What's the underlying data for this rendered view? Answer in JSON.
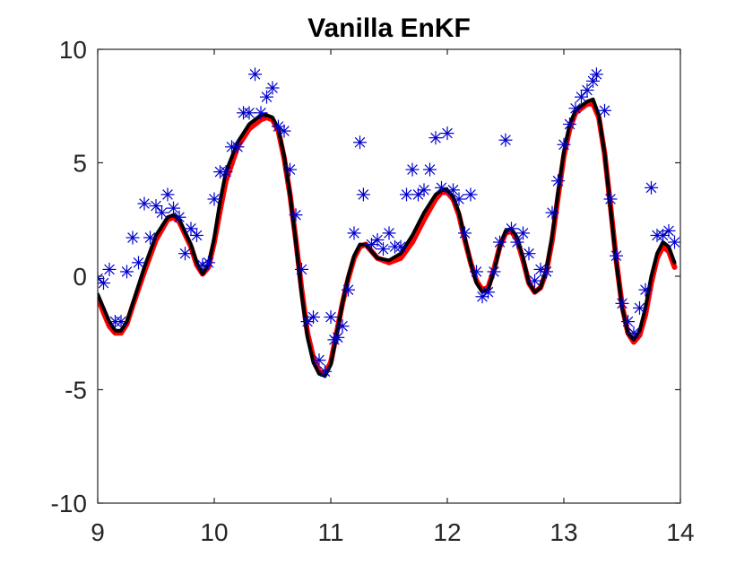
{
  "chart_data": {
    "type": "line",
    "title": "Vanilla EnKF",
    "xlabel": "",
    "ylabel": "",
    "xlim": [
      9,
      14
    ],
    "ylim": [
      -10,
      10
    ],
    "xticks": [
      9,
      10,
      11,
      12,
      13,
      14
    ],
    "yticks": [
      10,
      5,
      0,
      -5,
      -10
    ],
    "xtick_labels": [
      "9",
      "10",
      "11",
      "12",
      "13",
      "14"
    ],
    "ytick_labels": [
      "10",
      "5",
      "0",
      "-5",
      "-10"
    ],
    "grid": false,
    "legend": "none",
    "series": [
      {
        "color": "#ff0000",
        "style": "line",
        "points": [
          [
            9.0,
            -0.9
          ],
          [
            9.05,
            -1.6
          ],
          [
            9.1,
            -2.2
          ],
          [
            9.15,
            -2.5
          ],
          [
            9.2,
            -2.5
          ],
          [
            9.25,
            -2.1
          ],
          [
            9.3,
            -1.3
          ],
          [
            9.4,
            0.2
          ],
          [
            9.5,
            1.6
          ],
          [
            9.6,
            2.5
          ],
          [
            9.65,
            2.6
          ],
          [
            9.7,
            2.4
          ],
          [
            9.8,
            1.3
          ],
          [
            9.85,
            0.5
          ],
          [
            9.9,
            0.1
          ],
          [
            9.95,
            0.4
          ],
          [
            10.0,
            1.5
          ],
          [
            10.05,
            2.9
          ],
          [
            10.1,
            4.2
          ],
          [
            10.2,
            5.7
          ],
          [
            10.3,
            6.5
          ],
          [
            10.4,
            6.9
          ],
          [
            10.45,
            7.0
          ],
          [
            10.5,
            6.9
          ],
          [
            10.55,
            6.4
          ],
          [
            10.6,
            5.2
          ],
          [
            10.65,
            3.6
          ],
          [
            10.7,
            1.6
          ],
          [
            10.75,
            -0.6
          ],
          [
            10.8,
            -2.5
          ],
          [
            10.85,
            -3.6
          ],
          [
            10.9,
            -4.2
          ],
          [
            10.95,
            -4.3
          ],
          [
            11.0,
            -3.8
          ],
          [
            11.05,
            -2.5
          ],
          [
            11.1,
            -1.2
          ],
          [
            11.15,
            -0.1
          ],
          [
            11.2,
            0.8
          ],
          [
            11.25,
            1.3
          ],
          [
            11.3,
            1.4
          ],
          [
            11.35,
            1.1
          ],
          [
            11.4,
            0.8
          ],
          [
            11.5,
            0.6
          ],
          [
            11.6,
            0.8
          ],
          [
            11.7,
            1.5
          ],
          [
            11.8,
            2.5
          ],
          [
            11.9,
            3.4
          ],
          [
            11.95,
            3.7
          ],
          [
            12.0,
            3.7
          ],
          [
            12.05,
            3.4
          ],
          [
            12.1,
            2.7
          ],
          [
            12.15,
            1.6
          ],
          [
            12.2,
            0.6
          ],
          [
            12.25,
            -0.2
          ],
          [
            12.3,
            -0.6
          ],
          [
            12.35,
            -0.5
          ],
          [
            12.4,
            0.3
          ],
          [
            12.45,
            1.3
          ],
          [
            12.5,
            1.9
          ],
          [
            12.55,
            2.0
          ],
          [
            12.6,
            1.6
          ],
          [
            12.65,
            0.7
          ],
          [
            12.7,
            -0.3
          ],
          [
            12.75,
            -0.7
          ],
          [
            12.8,
            -0.5
          ],
          [
            12.85,
            0.2
          ],
          [
            12.9,
            1.6
          ],
          [
            12.95,
            3.5
          ],
          [
            13.0,
            5.3
          ],
          [
            13.05,
            6.5
          ],
          [
            13.1,
            7.2
          ],
          [
            13.2,
            7.6
          ],
          [
            13.25,
            7.6
          ],
          [
            13.3,
            7.0
          ],
          [
            13.35,
            5.4
          ],
          [
            13.4,
            3.1
          ],
          [
            13.45,
            0.7
          ],
          [
            13.5,
            -1.3
          ],
          [
            13.55,
            -2.5
          ],
          [
            13.6,
            -2.9
          ],
          [
            13.65,
            -2.6
          ],
          [
            13.7,
            -1.7
          ],
          [
            13.75,
            -0.3
          ],
          [
            13.8,
            0.8
          ],
          [
            13.85,
            1.3
          ],
          [
            13.9,
            1.1
          ],
          [
            13.95,
            0.4
          ]
        ]
      },
      {
        "color": "#000000",
        "style": "line",
        "points": [
          [
            9.0,
            -0.8
          ],
          [
            9.05,
            -1.4
          ],
          [
            9.1,
            -2.0
          ],
          [
            9.15,
            -2.4
          ],
          [
            9.2,
            -2.4
          ],
          [
            9.25,
            -2.0
          ],
          [
            9.3,
            -1.2
          ],
          [
            9.4,
            0.4
          ],
          [
            9.5,
            1.8
          ],
          [
            9.6,
            2.6
          ],
          [
            9.65,
            2.7
          ],
          [
            9.7,
            2.5
          ],
          [
            9.8,
            1.4
          ],
          [
            9.85,
            0.6
          ],
          [
            9.9,
            0.1
          ],
          [
            9.95,
            0.5
          ],
          [
            10.0,
            1.7
          ],
          [
            10.05,
            3.3
          ],
          [
            10.1,
            4.6
          ],
          [
            10.2,
            5.9
          ],
          [
            10.3,
            6.7
          ],
          [
            10.4,
            7.1
          ],
          [
            10.45,
            7.1
          ],
          [
            10.5,
            7.0
          ],
          [
            10.55,
            6.5
          ],
          [
            10.6,
            5.3
          ],
          [
            10.65,
            3.6
          ],
          [
            10.7,
            1.5
          ],
          [
            10.75,
            -0.8
          ],
          [
            10.8,
            -2.7
          ],
          [
            10.85,
            -3.8
          ],
          [
            10.9,
            -4.3
          ],
          [
            10.95,
            -4.4
          ],
          [
            11.0,
            -3.9
          ],
          [
            11.05,
            -2.6
          ],
          [
            11.1,
            -1.2
          ],
          [
            11.15,
            0.0
          ],
          [
            11.2,
            0.9
          ],
          [
            11.25,
            1.4
          ],
          [
            11.3,
            1.4
          ],
          [
            11.35,
            1.1
          ],
          [
            11.4,
            0.8
          ],
          [
            11.5,
            0.7
          ],
          [
            11.6,
            1.0
          ],
          [
            11.7,
            1.8
          ],
          [
            11.8,
            2.8
          ],
          [
            11.9,
            3.6
          ],
          [
            11.95,
            3.8
          ],
          [
            12.0,
            3.8
          ],
          [
            12.05,
            3.5
          ],
          [
            12.1,
            2.8
          ],
          [
            12.15,
            1.7
          ],
          [
            12.2,
            0.6
          ],
          [
            12.25,
            -0.3
          ],
          [
            12.3,
            -0.7
          ],
          [
            12.35,
            -0.6
          ],
          [
            12.4,
            0.2
          ],
          [
            12.45,
            1.3
          ],
          [
            12.5,
            2.0
          ],
          [
            12.55,
            2.1
          ],
          [
            12.6,
            1.7
          ],
          [
            12.65,
            0.8
          ],
          [
            12.7,
            -0.3
          ],
          [
            12.75,
            -0.7
          ],
          [
            12.8,
            -0.5
          ],
          [
            12.85,
            0.3
          ],
          [
            12.9,
            1.8
          ],
          [
            12.95,
            3.7
          ],
          [
            13.0,
            5.5
          ],
          [
            13.05,
            6.7
          ],
          [
            13.1,
            7.3
          ],
          [
            13.2,
            7.7
          ],
          [
            13.25,
            7.8
          ],
          [
            13.3,
            7.1
          ],
          [
            13.35,
            5.4
          ],
          [
            13.4,
            3.0
          ],
          [
            13.45,
            0.6
          ],
          [
            13.5,
            -1.4
          ],
          [
            13.55,
            -2.5
          ],
          [
            13.6,
            -2.8
          ],
          [
            13.65,
            -2.4
          ],
          [
            13.7,
            -1.4
          ],
          [
            13.75,
            0.0
          ],
          [
            13.8,
            1.0
          ],
          [
            13.85,
            1.5
          ],
          [
            13.9,
            1.3
          ],
          [
            13.95,
            0.6
          ]
        ]
      },
      {
        "color": "#0000cc",
        "style": "markers",
        "marker": "asterisk",
        "points": [
          [
            9.0,
            -0.1
          ],
          [
            9.05,
            -0.3
          ],
          [
            9.1,
            0.3
          ],
          [
            9.15,
            -2.0
          ],
          [
            9.2,
            -2.0
          ],
          [
            9.25,
            0.2
          ],
          [
            9.3,
            1.7
          ],
          [
            9.35,
            0.6
          ],
          [
            9.4,
            3.2
          ],
          [
            9.45,
            1.7
          ],
          [
            9.5,
            3.1
          ],
          [
            9.55,
            2.8
          ],
          [
            9.6,
            3.6
          ],
          [
            9.65,
            3.0
          ],
          [
            9.7,
            2.6
          ],
          [
            9.75,
            1.0
          ],
          [
            9.8,
            2.1
          ],
          [
            9.85,
            1.8
          ],
          [
            9.9,
            0.5
          ],
          [
            9.95,
            0.6
          ],
          [
            10.0,
            3.4
          ],
          [
            10.05,
            4.6
          ],
          [
            10.1,
            4.6
          ],
          [
            10.15,
            5.7
          ],
          [
            10.2,
            5.7
          ],
          [
            10.25,
            7.2
          ],
          [
            10.3,
            7.2
          ],
          [
            10.35,
            8.9
          ],
          [
            10.4,
            7.2
          ],
          [
            10.45,
            7.9
          ],
          [
            10.5,
            8.3
          ],
          [
            10.55,
            6.6
          ],
          [
            10.6,
            6.4
          ],
          [
            10.65,
            4.7
          ],
          [
            10.7,
            2.7
          ],
          [
            10.75,
            0.3
          ],
          [
            10.8,
            -2.0
          ],
          [
            10.85,
            -1.8
          ],
          [
            10.9,
            -3.7
          ],
          [
            10.95,
            -4.2
          ],
          [
            11.0,
            -1.8
          ],
          [
            11.03,
            -2.8
          ],
          [
            11.06,
            -2.7
          ],
          [
            11.1,
            -2.2
          ],
          [
            11.15,
            -0.6
          ],
          [
            11.2,
            1.9
          ],
          [
            11.25,
            5.9
          ],
          [
            11.28,
            3.6
          ],
          [
            11.35,
            1.4
          ],
          [
            11.4,
            1.6
          ],
          [
            11.45,
            1.2
          ],
          [
            11.5,
            1.9
          ],
          [
            11.55,
            1.3
          ],
          [
            11.6,
            1.3
          ],
          [
            11.65,
            3.6
          ],
          [
            11.7,
            4.7
          ],
          [
            11.75,
            3.6
          ],
          [
            11.8,
            3.8
          ],
          [
            11.85,
            4.7
          ],
          [
            11.9,
            6.1
          ],
          [
            11.95,
            3.9
          ],
          [
            12.0,
            6.3
          ],
          [
            12.05,
            3.8
          ],
          [
            12.1,
            3.4
          ],
          [
            12.15,
            1.9
          ],
          [
            12.2,
            3.6
          ],
          [
            12.25,
            0.2
          ],
          [
            12.3,
            -0.9
          ],
          [
            12.35,
            -0.7
          ],
          [
            12.4,
            0.2
          ],
          [
            12.45,
            1.5
          ],
          [
            12.5,
            6.0
          ],
          [
            12.55,
            2.1
          ],
          [
            12.6,
            1.5
          ],
          [
            12.65,
            1.9
          ],
          [
            12.7,
            1.0
          ],
          [
            12.75,
            -0.2
          ],
          [
            12.8,
            0.3
          ],
          [
            12.85,
            0.2
          ],
          [
            12.9,
            2.8
          ],
          [
            12.95,
            4.2
          ],
          [
            13.0,
            5.8
          ],
          [
            13.05,
            6.7
          ],
          [
            13.1,
            7.4
          ],
          [
            13.15,
            7.9
          ],
          [
            13.2,
            8.2
          ],
          [
            13.25,
            8.6
          ],
          [
            13.28,
            8.9
          ],
          [
            13.35,
            7.3
          ],
          [
            13.4,
            3.4
          ],
          [
            13.45,
            0.9
          ],
          [
            13.5,
            -1.2
          ],
          [
            13.55,
            -2.0
          ],
          [
            13.6,
            -2.5
          ],
          [
            13.65,
            -1.4
          ],
          [
            13.7,
            -0.6
          ],
          [
            13.75,
            3.9
          ],
          [
            13.8,
            1.8
          ],
          [
            13.85,
            1.8
          ],
          [
            13.9,
            2.0
          ],
          [
            13.95,
            1.5
          ]
        ]
      }
    ]
  }
}
